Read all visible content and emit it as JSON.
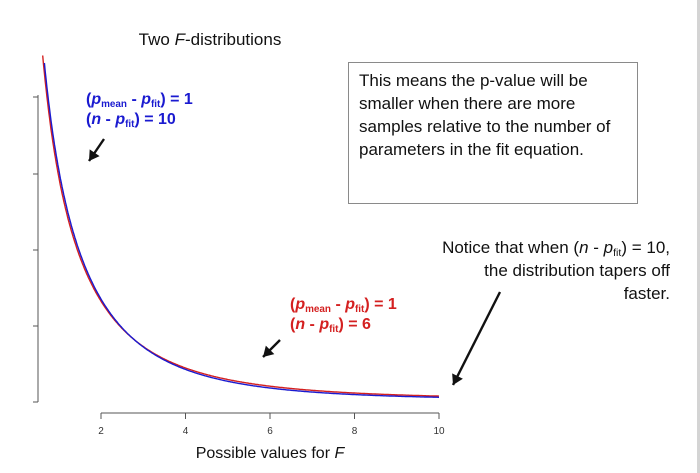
{
  "chart_data": {
    "type": "line",
    "title": "Two F-distributions",
    "xlabel": "Possible values for F",
    "ylabel": "",
    "x_ticks": [
      "2",
      "4",
      "6",
      "8",
      "10"
    ],
    "xlim": [
      1,
      10
    ],
    "series": [
      {
        "name": "(p_mean - p_fit) = 1, (n - p_fit) = 10",
        "color": "#1a1ad0",
        "df1": 1,
        "df2": 10,
        "x": [
          0.75,
          1,
          1.5,
          2,
          2.5,
          3,
          3.5,
          4,
          5,
          6,
          7,
          8,
          9,
          10
        ],
        "y": [
          0.334,
          0.242,
          0.137,
          0.0886,
          0.0615,
          0.0447,
          0.0335,
          0.0258,
          0.0163,
          0.0108,
          0.00744,
          0.00529,
          0.00386,
          0.00287
        ]
      },
      {
        "name": "(p_mean - p_fit) = 1, (n - p_fit) = 6",
        "color": "#d42020",
        "df1": 1,
        "df2": 6,
        "x": [
          0.75,
          1,
          1.5,
          2,
          2.5,
          3,
          3.5,
          4,
          5,
          6,
          7,
          8,
          9,
          10
        ],
        "y": [
          0.309,
          0.231,
          0.135,
          0.0892,
          0.0631,
          0.0468,
          0.0359,
          0.0283,
          0.0186,
          0.0131,
          0.00955,
          0.00719,
          0.00556,
          0.00439
        ]
      }
    ]
  },
  "text": {
    "title_prefix": "Two ",
    "title_var": "F",
    "title_suffix": "-distributions",
    "xlabel_prefix": "Possible values for ",
    "xlabel_var": "F",
    "note": "This means the p-value will be smaller when there are more samples relative to the number of parameters in the fit equation.",
    "blue_label": {
      "line1": {
        "open": "(",
        "p": "p",
        "sub1": "mean",
        "mid": " - ",
        "p2": "p",
        "sub2": "fit",
        "close": ") = 1"
      },
      "line2": {
        "open": "(",
        "n": "n",
        "mid": " - ",
        "p": "p",
        "sub": "fit",
        "close": ") = 10"
      }
    },
    "red_label": {
      "line1": {
        "open": "(",
        "p": "p",
        "sub1": "mean",
        "mid": " - ",
        "p2": "p",
        "sub2": "fit",
        "close": ") = 1"
      },
      "line2": {
        "open": "(",
        "n": "n",
        "mid": " - ",
        "p": "p",
        "sub": "fit",
        "close": ") = 6"
      }
    },
    "notice": {
      "prefix": "Notice that when (",
      "n": "n",
      "mid": " - ",
      "p": "p",
      "sub": "fit",
      "suffix": ") = 10,",
      "line2": "the distribution tapers off",
      "line3": "faster."
    }
  }
}
